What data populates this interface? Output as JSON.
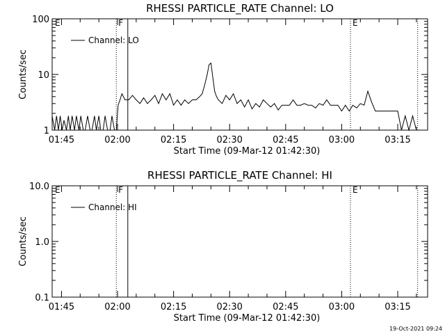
{
  "footer": {
    "timestamp": "19-Oct-2021 09:24"
  },
  "chart_data": [
    {
      "type": "line",
      "title": "RHESSI PARTICLE_RATE Channel: LO",
      "xlabel": "Start Time (09-Mar-12 01:42:30)",
      "ylabel": "Counts/sec",
      "yscale": "log",
      "ylim": [
        1,
        100
      ],
      "ytick_labels": [
        "1",
        "10",
        "100"
      ],
      "xlim": [
        "01:42:30",
        "03:23:00"
      ],
      "xtick_labels": [
        "01:45",
        "02:00",
        "02:15",
        "02:30",
        "02:45",
        "03:00",
        "03:15"
      ],
      "grid": false,
      "legend": {
        "position": "top-left",
        "entries": [
          "Channel: LO"
        ]
      },
      "markers": [
        {
          "time": "01:59:40",
          "label": "F",
          "style": "dotted"
        },
        {
          "time": "02:02:45",
          "label": "",
          "style": "solid"
        },
        {
          "time": "03:02:20",
          "label": "E",
          "style": "dotted"
        },
        {
          "time": "03:20:20",
          "label": "",
          "style": "dotted"
        }
      ],
      "corner_labels": [
        "E"
      ],
      "series": [
        {
          "name": "Channel: LO",
          "t": [
            "01:42:30",
            "01:43:10",
            "01:43:40",
            "01:44:10",
            "01:44:40",
            "01:45:10",
            "01:45:40",
            "01:46:20",
            "01:46:50",
            "01:47:20",
            "01:47:50",
            "01:48:30",
            "01:49:00",
            "01:49:40",
            "01:50:10",
            "01:50:50",
            "01:51:20",
            "01:52:00",
            "01:52:40",
            "01:53:10",
            "01:53:50",
            "01:54:20",
            "01:55:00",
            "01:55:30",
            "01:56:10",
            "01:56:40",
            "01:57:20",
            "01:58:00",
            "01:58:30",
            "01:59:10",
            "01:59:40",
            "02:00:10",
            "02:00:40",
            "02:01:10",
            "02:02:00",
            "02:03:00",
            "02:04:00",
            "02:05:00",
            "02:06:00",
            "02:07:00",
            "02:08:00",
            "02:09:00",
            "02:10:00",
            "02:11:00",
            "02:12:00",
            "02:13:00",
            "02:14:00",
            "02:15:00",
            "02:16:00",
            "02:17:00",
            "02:18:00",
            "02:19:00",
            "02:20:00",
            "02:21:00",
            "02:22:00",
            "02:22:40",
            "02:23:20",
            "02:24:00",
            "02:24:30",
            "02:25:00",
            "02:25:30",
            "02:26:00",
            "02:26:30",
            "02:27:00",
            "02:28:00",
            "02:29:00",
            "02:30:00",
            "02:31:00",
            "02:32:00",
            "02:33:00",
            "02:34:00",
            "02:35:00",
            "02:36:00",
            "02:37:00",
            "02:38:00",
            "02:39:00",
            "02:40:00",
            "02:41:00",
            "02:42:00",
            "02:43:00",
            "02:44:00",
            "02:45:00",
            "02:46:00",
            "02:47:00",
            "02:48:00",
            "02:49:00",
            "02:50:00",
            "02:51:00",
            "02:52:00",
            "02:53:00",
            "02:54:00",
            "02:55:00",
            "02:56:00",
            "02:57:00",
            "02:58:00",
            "02:59:00",
            "03:00:00",
            "03:01:00",
            "03:02:00",
            "03:03:00",
            "03:04:00",
            "03:05:00",
            "03:06:00",
            "03:07:00",
            "03:08:00",
            "03:09:00",
            "03:10:00",
            "03:11:00",
            "03:12:00",
            "03:13:00",
            "03:14:00",
            "03:15:00",
            "03:16:00",
            "03:17:00",
            "03:18:00",
            "03:19:00",
            "03:20:00"
          ],
          "values": [
            1.8,
            1,
            1.8,
            1,
            1.8,
            1,
            1.5,
            1,
            1.8,
            1,
            1.8,
            1,
            1.8,
            1,
            1.8,
            1,
            1,
            1.8,
            1,
            1,
            1.8,
            1,
            1.8,
            1,
            1,
            1.8,
            1,
            1,
            1.8,
            1,
            1,
            2.8,
            3.5,
            4.5,
            3.5,
            3.5,
            4.2,
            3.5,
            3,
            3.8,
            3,
            3.5,
            4.2,
            3,
            4.5,
            3.5,
            4.5,
            2.8,
            3.5,
            2.8,
            3.5,
            3,
            3.5,
            3.5,
            4,
            4.5,
            6.5,
            10,
            15,
            16,
            9,
            5,
            4,
            3.5,
            3,
            4.2,
            3.5,
            4.5,
            3,
            3.5,
            2.6,
            3.5,
            2.4,
            3,
            2.6,
            3.5,
            3,
            2.6,
            3,
            2.3,
            2.8,
            2.8,
            2.8,
            3.5,
            2.8,
            2.8,
            3,
            2.8,
            2.8,
            2.5,
            3,
            2.8,
            3.5,
            2.8,
            2.8,
            2.8,
            2.2,
            2.8,
            2.2,
            2.8,
            2.5,
            3,
            2.8,
            5,
            3.2,
            2.2,
            2.2,
            2.2,
            2.2,
            2.2,
            2.2,
            2.2,
            1,
            1.8,
            1,
            1.8,
            1
          ]
        }
      ]
    },
    {
      "type": "line",
      "title": "RHESSI PARTICLE_RATE Channel: HI",
      "xlabel": "Start Time (09-Mar-12 01:42:30)",
      "ylabel": "Counts/sec",
      "yscale": "log",
      "ylim": [
        0.1,
        10
      ],
      "ytick_labels": [
        "0.1",
        "1.0",
        "10.0"
      ],
      "xlim": [
        "01:42:30",
        "03:23:00"
      ],
      "xtick_labels": [
        "01:45",
        "02:00",
        "02:15",
        "02:30",
        "02:45",
        "03:00",
        "03:15"
      ],
      "grid": false,
      "legend": {
        "position": "top-left",
        "entries": [
          "Channel: HI"
        ]
      },
      "markers": [
        {
          "time": "01:59:40",
          "label": "F",
          "style": "dotted"
        },
        {
          "time": "02:02:45",
          "label": "",
          "style": "solid"
        },
        {
          "time": "03:02:20",
          "label": "E",
          "style": "dotted"
        },
        {
          "time": "03:20:20",
          "label": "",
          "style": "dotted"
        }
      ],
      "corner_labels": [
        "E"
      ],
      "series": [
        {
          "name": "Channel: HI",
          "t": [],
          "values": []
        }
      ]
    }
  ]
}
